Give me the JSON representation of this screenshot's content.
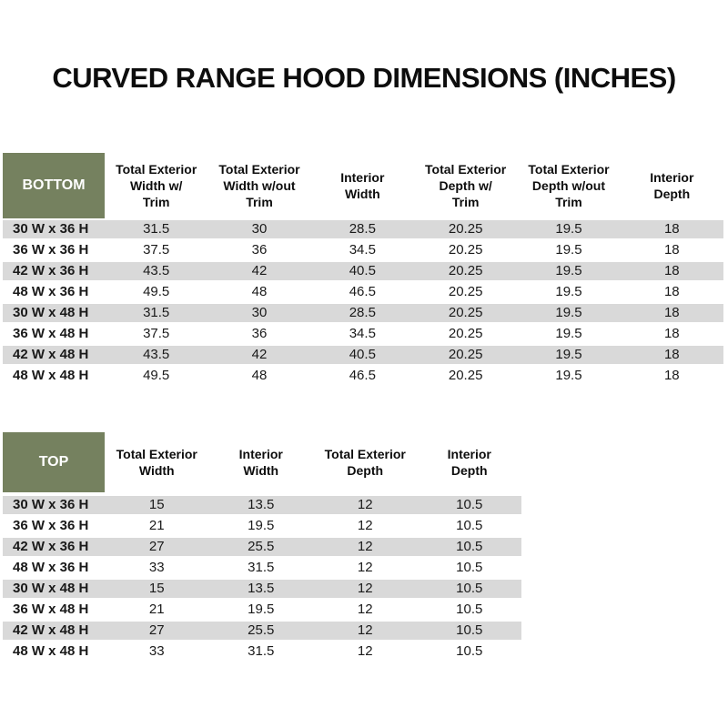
{
  "page": {
    "title": "CURVED RANGE HOOD DIMENSIONS (INCHES)"
  },
  "colors": {
    "header_green": "#75815F",
    "stripe_gray": "#D9D9D9",
    "header_label_text": "#FFFFFF",
    "body_text": "#1A1A1A"
  },
  "tables": [
    {
      "id": "bottom",
      "label": "BOTTOM",
      "columns": [
        "Total Exterior\nWidth w/\nTrim",
        "Total Exterior\nWidth w/out\nTrim",
        "Interior\nWidth",
        "Total Exterior\nDepth w/\nTrim",
        "Total Exterior\nDepth w/out\nTrim",
        "Interior\nDepth"
      ],
      "rows": [
        {
          "label": "30 W x 36 H",
          "values": [
            "31.5",
            "30",
            "28.5",
            "20.25",
            "19.5",
            "18"
          ]
        },
        {
          "label": "36 W x 36 H",
          "values": [
            "37.5",
            "36",
            "34.5",
            "20.25",
            "19.5",
            "18"
          ]
        },
        {
          "label": "42 W x 36 H",
          "values": [
            "43.5",
            "42",
            "40.5",
            "20.25",
            "19.5",
            "18"
          ]
        },
        {
          "label": "48 W x 36 H",
          "values": [
            "49.5",
            "48",
            "46.5",
            "20.25",
            "19.5",
            "18"
          ]
        },
        {
          "label": "30 W x 48 H",
          "values": [
            "31.5",
            "30",
            "28.5",
            "20.25",
            "19.5",
            "18"
          ]
        },
        {
          "label": "36 W x 48 H",
          "values": [
            "37.5",
            "36",
            "34.5",
            "20.25",
            "19.5",
            "18"
          ]
        },
        {
          "label": "42 W x 48 H",
          "values": [
            "43.5",
            "42",
            "40.5",
            "20.25",
            "19.5",
            "18"
          ]
        },
        {
          "label": "48 W x 48 H",
          "values": [
            "49.5",
            "48",
            "46.5",
            "20.25",
            "19.5",
            "18"
          ]
        }
      ]
    },
    {
      "id": "top",
      "label": "TOP",
      "columns": [
        "Total Exterior\nWidth",
        "Interior\nWidth",
        "Total Exterior\nDepth",
        "Interior\nDepth"
      ],
      "rows": [
        {
          "label": "30 W x 36 H",
          "values": [
            "15",
            "13.5",
            "12",
            "10.5"
          ]
        },
        {
          "label": "36 W x 36 H",
          "values": [
            "21",
            "19.5",
            "12",
            "10.5"
          ]
        },
        {
          "label": "42 W x 36 H",
          "values": [
            "27",
            "25.5",
            "12",
            "10.5"
          ]
        },
        {
          "label": "48 W x 36 H",
          "values": [
            "33",
            "31.5",
            "12",
            "10.5"
          ]
        },
        {
          "label": "30 W x 48 H",
          "values": [
            "15",
            "13.5",
            "12",
            "10.5"
          ]
        },
        {
          "label": "36 W x 48 H",
          "values": [
            "21",
            "19.5",
            "12",
            "10.5"
          ]
        },
        {
          "label": "42 W x 48 H",
          "values": [
            "27",
            "25.5",
            "12",
            "10.5"
          ]
        },
        {
          "label": "48 W x 48 H",
          "values": [
            "33",
            "31.5",
            "12",
            "10.5"
          ]
        }
      ]
    }
  ]
}
